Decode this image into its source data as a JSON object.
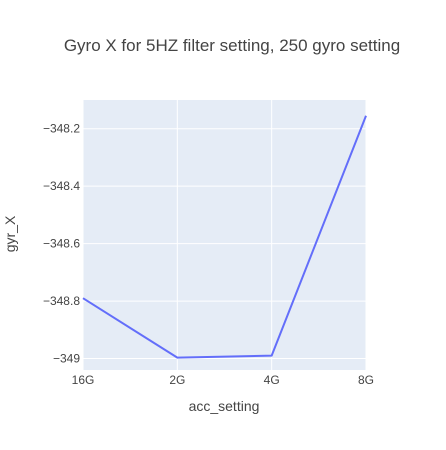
{
  "chart_data": {
    "type": "line",
    "title": "Gyro X for 5HZ filter setting, 250 gyro setting",
    "xlabel": "acc_setting",
    "ylabel": "gyr_X",
    "categories": [
      "16G",
      "2G",
      "4G",
      "8G"
    ],
    "series": [
      {
        "values": [
          -348.79,
          -348.997,
          -348.99,
          -348.155
        ],
        "color": "#636efa"
      }
    ],
    "ylim": [
      -349.04,
      -348.1
    ],
    "yticks": [
      -349,
      -348.8,
      -348.6,
      -348.4,
      -348.2
    ],
    "ytick_labels": [
      "−349",
      "−348.8",
      "−348.6",
      "−348.4",
      "−348.2"
    ],
    "grid": true,
    "plot_background": "#e5ecf6",
    "legend": "none"
  }
}
